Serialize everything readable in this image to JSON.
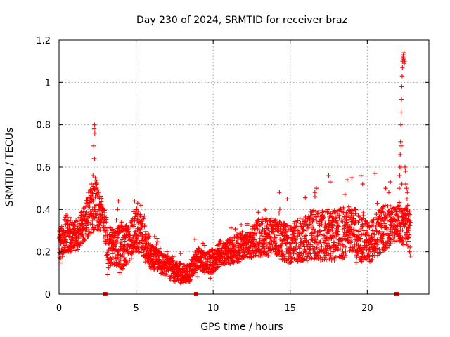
{
  "chart_data": {
    "type": "scatter",
    "title": "Day 230 of 2024, SRMTID for receiver braz",
    "xlabel": "GPS time / hours",
    "ylabel": "SRMTID / TECUs",
    "xlim": [
      0,
      24
    ],
    "ylim": [
      0,
      1.2
    ],
    "x_ticks": [
      0,
      5,
      10,
      15,
      20
    ],
    "x_tick_labels": [
      "0",
      "5",
      "10",
      "15",
      "20"
    ],
    "y_ticks": [
      0,
      0.2,
      0.4,
      0.6,
      0.8,
      1.0,
      1.2
    ],
    "y_tick_labels": [
      "0",
      "0.2",
      "0.4",
      "0.6",
      "0.8",
      "1",
      "1.2"
    ],
    "grid": true,
    "marker": "plus",
    "color": "#ff0000",
    "zero_markers": [
      3.0,
      8.9,
      21.9
    ],
    "envelope": [
      {
        "x": 0.0,
        "lo": 0.16,
        "hi": 0.3
      },
      {
        "x": 0.5,
        "lo": 0.2,
        "hi": 0.38
      },
      {
        "x": 1.0,
        "lo": 0.2,
        "hi": 0.34
      },
      {
        "x": 1.5,
        "lo": 0.24,
        "hi": 0.4
      },
      {
        "x": 2.0,
        "lo": 0.28,
        "hi": 0.5
      },
      {
        "x": 2.4,
        "lo": 0.3,
        "hi": 0.55
      },
      {
        "x": 2.8,
        "lo": 0.3,
        "hi": 0.44
      },
      {
        "x": 3.2,
        "lo": 0.12,
        "hi": 0.34
      },
      {
        "x": 3.6,
        "lo": 0.14,
        "hi": 0.3
      },
      {
        "x": 4.0,
        "lo": 0.12,
        "hi": 0.34
      },
      {
        "x": 4.5,
        "lo": 0.15,
        "hi": 0.32
      },
      {
        "x": 5.0,
        "lo": 0.2,
        "hi": 0.42
      },
      {
        "x": 5.5,
        "lo": 0.16,
        "hi": 0.36
      },
      {
        "x": 6.0,
        "lo": 0.12,
        "hi": 0.24
      },
      {
        "x": 6.5,
        "lo": 0.1,
        "hi": 0.2
      },
      {
        "x": 7.0,
        "lo": 0.08,
        "hi": 0.18
      },
      {
        "x": 7.5,
        "lo": 0.06,
        "hi": 0.16
      },
      {
        "x": 8.0,
        "lo": 0.05,
        "hi": 0.15
      },
      {
        "x": 8.5,
        "lo": 0.06,
        "hi": 0.14
      },
      {
        "x": 9.0,
        "lo": 0.12,
        "hi": 0.22
      },
      {
        "x": 9.5,
        "lo": 0.1,
        "hi": 0.2
      },
      {
        "x": 10.0,
        "lo": 0.1,
        "hi": 0.22
      },
      {
        "x": 10.5,
        "lo": 0.14,
        "hi": 0.24
      },
      {
        "x": 11.0,
        "lo": 0.14,
        "hi": 0.26
      },
      {
        "x": 12.0,
        "lo": 0.16,
        "hi": 0.3
      },
      {
        "x": 13.0,
        "lo": 0.18,
        "hi": 0.36
      },
      {
        "x": 14.0,
        "lo": 0.18,
        "hi": 0.36
      },
      {
        "x": 15.0,
        "lo": 0.14,
        "hi": 0.32
      },
      {
        "x": 16.0,
        "lo": 0.16,
        "hi": 0.4
      },
      {
        "x": 17.0,
        "lo": 0.16,
        "hi": 0.4
      },
      {
        "x": 18.0,
        "lo": 0.16,
        "hi": 0.4
      },
      {
        "x": 19.0,
        "lo": 0.18,
        "hi": 0.42
      },
      {
        "x": 20.0,
        "lo": 0.14,
        "hi": 0.34
      },
      {
        "x": 21.0,
        "lo": 0.2,
        "hi": 0.42
      },
      {
        "x": 21.8,
        "lo": 0.25,
        "hi": 0.42
      },
      {
        "x": 22.8,
        "lo": 0.22,
        "hi": 0.4
      }
    ],
    "spikes": [
      {
        "x": 2.05,
        "y": 0.48
      },
      {
        "x": 2.1,
        "y": 0.52
      },
      {
        "x": 2.15,
        "y": 0.46
      },
      {
        "x": 2.25,
        "y": 0.7
      },
      {
        "x": 2.28,
        "y": 0.78
      },
      {
        "x": 2.3,
        "y": 0.8
      },
      {
        "x": 2.32,
        "y": 0.76
      },
      {
        "x": 2.26,
        "y": 0.64
      },
      {
        "x": 2.3,
        "y": 0.64
      },
      {
        "x": 2.2,
        "y": 0.56
      },
      {
        "x": 2.35,
        "y": 0.55
      },
      {
        "x": 2.45,
        "y": 0.52
      },
      {
        "x": 2.6,
        "y": 0.46
      },
      {
        "x": 3.8,
        "y": 0.4
      },
      {
        "x": 3.85,
        "y": 0.44
      },
      {
        "x": 4.9,
        "y": 0.44
      },
      {
        "x": 5.1,
        "y": 0.43
      },
      {
        "x": 5.3,
        "y": 0.42
      },
      {
        "x": 9.35,
        "y": 0.24
      },
      {
        "x": 9.45,
        "y": 0.23
      },
      {
        "x": 14.3,
        "y": 0.48
      },
      {
        "x": 14.8,
        "y": 0.45
      },
      {
        "x": 16.6,
        "y": 0.48
      },
      {
        "x": 16.7,
        "y": 0.5
      },
      {
        "x": 17.5,
        "y": 0.56
      },
      {
        "x": 17.6,
        "y": 0.53
      },
      {
        "x": 18.7,
        "y": 0.54
      },
      {
        "x": 19.0,
        "y": 0.55
      },
      {
        "x": 19.6,
        "y": 0.56
      },
      {
        "x": 19.7,
        "y": 0.52
      },
      {
        "x": 20.5,
        "y": 0.57
      },
      {
        "x": 21.5,
        "y": 0.53
      },
      {
        "x": 21.2,
        "y": 0.5
      },
      {
        "x": 21.4,
        "y": 0.48
      },
      {
        "x": 21.95,
        "y": 0.28
      },
      {
        "x": 22.0,
        "y": 0.36
      },
      {
        "x": 22.05,
        "y": 0.42
      },
      {
        "x": 22.08,
        "y": 0.5
      },
      {
        "x": 22.1,
        "y": 0.56
      },
      {
        "x": 22.12,
        "y": 0.6
      },
      {
        "x": 22.14,
        "y": 0.66
      },
      {
        "x": 22.16,
        "y": 0.72
      },
      {
        "x": 22.18,
        "y": 0.8
      },
      {
        "x": 22.2,
        "y": 0.86
      },
      {
        "x": 22.22,
        "y": 0.92
      },
      {
        "x": 22.24,
        "y": 0.98
      },
      {
        "x": 22.26,
        "y": 1.03
      },
      {
        "x": 22.28,
        "y": 1.07
      },
      {
        "x": 22.3,
        "y": 1.1
      },
      {
        "x": 22.32,
        "y": 1.12
      },
      {
        "x": 22.34,
        "y": 1.13
      },
      {
        "x": 22.36,
        "y": 1.11
      },
      {
        "x": 22.4,
        "y": 1.09
      },
      {
        "x": 22.42,
        "y": 1.1
      },
      {
        "x": 22.38,
        "y": 1.14
      },
      {
        "x": 22.45,
        "y": 0.6
      },
      {
        "x": 22.48,
        "y": 0.58
      },
      {
        "x": 22.5,
        "y": 0.52
      },
      {
        "x": 22.55,
        "y": 0.5
      },
      {
        "x": 22.58,
        "y": 0.45
      },
      {
        "x": 22.6,
        "y": 0.48
      },
      {
        "x": 22.62,
        "y": 0.42
      },
      {
        "x": 22.65,
        "y": 0.3
      },
      {
        "x": 22.7,
        "y": 0.25
      },
      {
        "x": 22.75,
        "y": 0.2
      },
      {
        "x": 22.8,
        "y": 0.18
      },
      {
        "x": 22.2,
        "y": 0.7
      },
      {
        "x": 22.05,
        "y": 0.26
      },
      {
        "x": 22.2,
        "y": 0.6
      },
      {
        "x": 22.25,
        "y": 0.52
      }
    ]
  }
}
